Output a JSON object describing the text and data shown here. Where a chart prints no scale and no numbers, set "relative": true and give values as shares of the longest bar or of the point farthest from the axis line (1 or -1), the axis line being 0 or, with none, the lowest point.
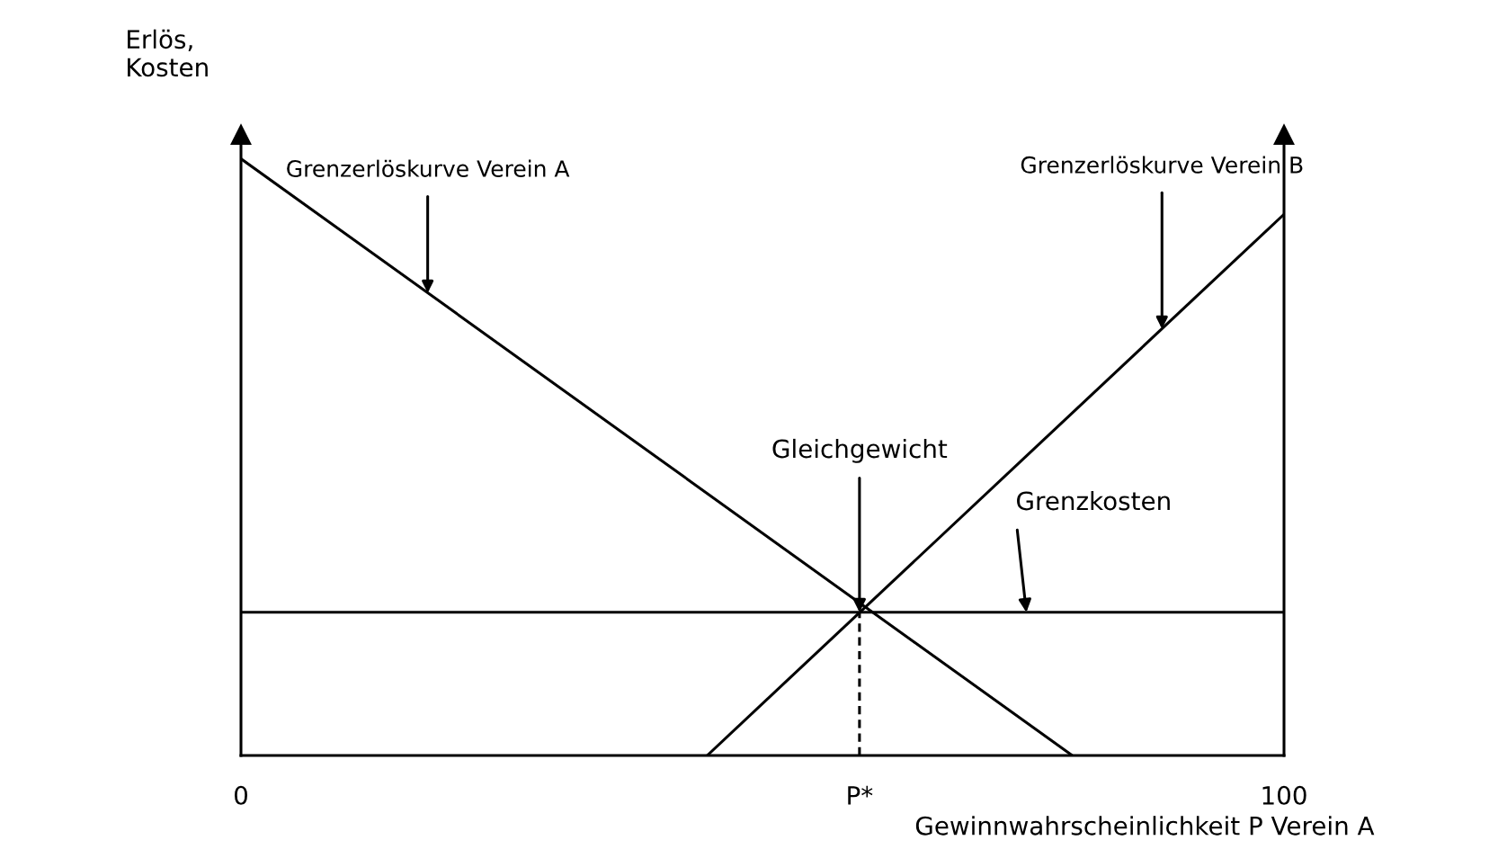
{
  "chart_data": {
    "type": "line",
    "relative": true,
    "xlabel": "Gewinnwahrscheinlichkeit P Verein A",
    "ylabel": "Erlös,\nKosten",
    "xlim": [
      0,
      100
    ],
    "xticks": [
      0,
      {
        "value": 59.3,
        "label": "P*"
      },
      100
    ],
    "tick_labels": "x",
    "grid": false,
    "legend": false,
    "marker": "none",
    "series": [
      {
        "x": [
          0,
          79.7
        ],
        "values": [
          1,
          0
        ],
        "color": "#000000",
        "line_style": "solid"
      },
      {
        "x": [
          44.7,
          100
        ],
        "values": [
          0,
          0.907
        ],
        "color": "#000000",
        "line_style": "solid"
      },
      {
        "x": [
          0,
          100
        ],
        "values": [
          0.24,
          0.24
        ],
        "color": "#000000",
        "line_style": "solid"
      },
      {
        "x": [
          59.3,
          59.3
        ],
        "values": [
          0,
          0.24
        ],
        "color": "#000000",
        "line_style": "dashed"
      }
    ],
    "annotations": [
      {
        "text": "Grenzerlöskurve Verein A",
        "x": 17.9,
        "y": 0.775
      },
      {
        "text": "Grenzerlöskurve Verein B",
        "x": 88.3,
        "y": 0.715
      },
      {
        "text": "Gleichgewicht",
        "x": 59.3,
        "y": 0.24
      },
      {
        "text": "Grenzkosten",
        "x": 75.3,
        "y": 0.24
      }
    ]
  }
}
